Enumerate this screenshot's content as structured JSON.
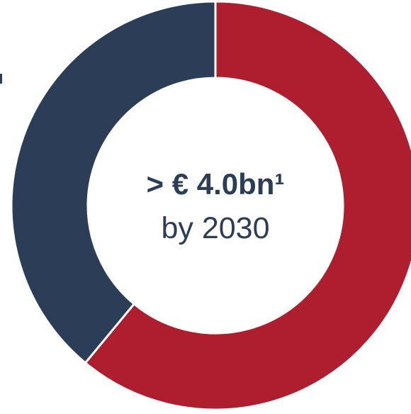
{
  "chart_data": {
    "type": "pie",
    "variant": "donut",
    "title": "",
    "slices": [
      {
        "name": "",
        "value": 61,
        "color": "#ae1e2e"
      },
      {
        "name": "",
        "value": 39,
        "color": "#2b3d57"
      }
    ],
    "center_label": {
      "main": "> € 4.0bn¹",
      "sub": "by 2030"
    },
    "legend": "none"
  },
  "colors": {
    "text": "#2b3d57",
    "separator": "#ffffff",
    "background": "#ffffff"
  }
}
